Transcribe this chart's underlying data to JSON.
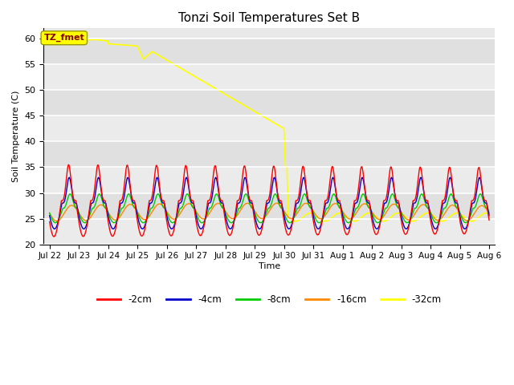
{
  "title": "Tonzi Soil Temperatures Set B",
  "xlabel": "Time",
  "ylabel": "Soil Temperature (C)",
  "ylim": [
    20,
    62
  ],
  "annotation_label": "TZ_fmet",
  "annotation_color": "#ffff00",
  "annotation_text_color": "#880000",
  "bg_color": "#e8e8e8",
  "series": [
    {
      "label": "-2cm",
      "color": "#ff0000",
      "lw": 1.0
    },
    {
      "label": "-4cm",
      "color": "#0000cc",
      "lw": 1.0
    },
    {
      "label": "-8cm",
      "color": "#00cc00",
      "lw": 1.0
    },
    {
      "label": "-16cm",
      "color": "#ff8800",
      "lw": 1.0
    },
    {
      "label": "-32cm",
      "color": "#ffff00",
      "lw": 1.2
    }
  ],
  "xtick_labels": [
    "Jul 22",
    "Jul 23",
    "Jul 24",
    "Jul 25",
    "Jul 26",
    "Jul 27",
    "Jul 28",
    "Jul 29",
    "Jul 30",
    "Jul 31",
    "Aug 1",
    "Aug 2",
    "Aug 3",
    "Aug 4",
    "Aug 5",
    "Aug 6"
  ],
  "ytick_vals": [
    20,
    25,
    30,
    35,
    40,
    45,
    50,
    55,
    60
  ],
  "grid_color": "#ffffff",
  "alt_band_color": "#e0e0e0"
}
